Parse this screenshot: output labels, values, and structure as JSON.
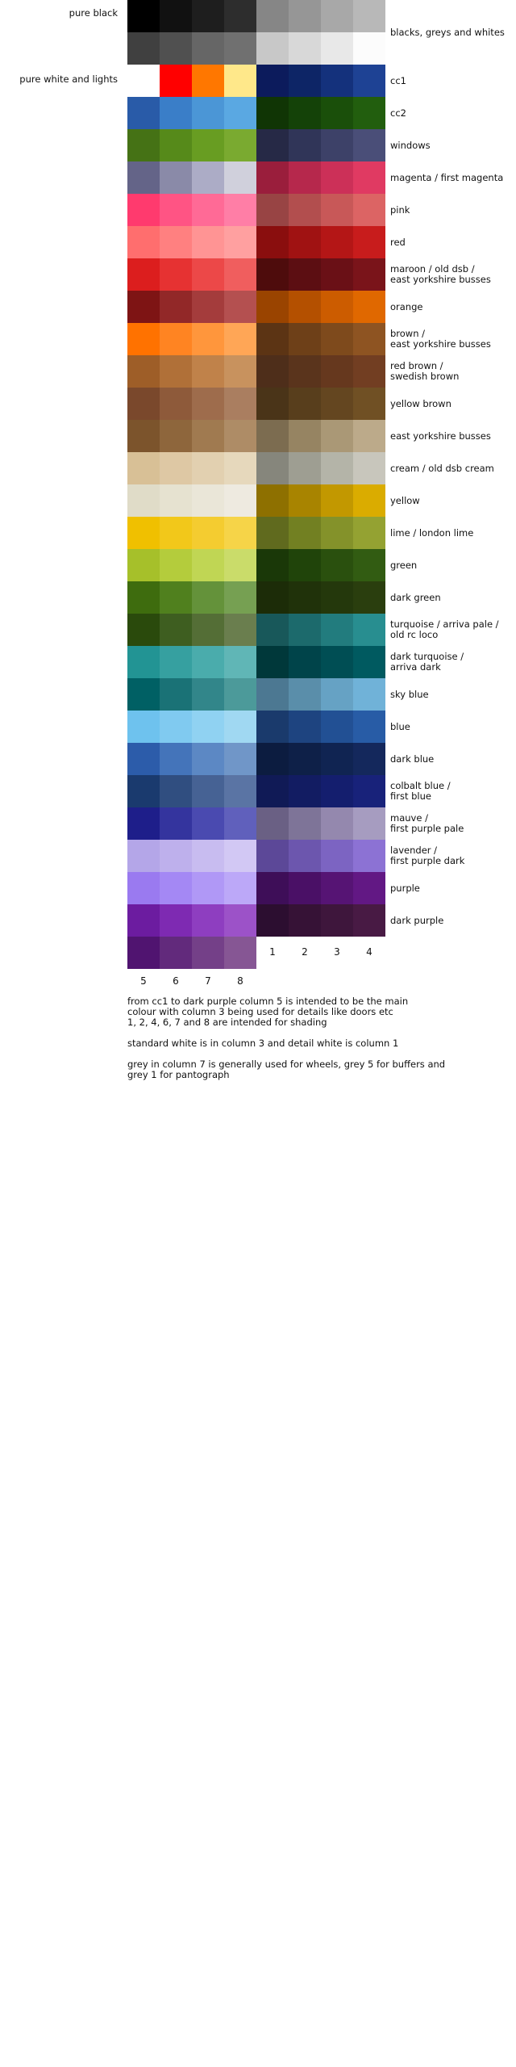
{
  "left_labels": [
    "pure black",
    "pure white and lights"
  ],
  "groups": [
    {
      "label": "blacks, greys and whites",
      "left": [
        "#000000",
        "#111111",
        "#1e1e1e",
        "#2d2d2d",
        "#404040",
        "#505050",
        "#666666",
        "#707070"
      ],
      "right": [
        "#868686",
        "#969696",
        "#a8a8a8",
        "#b8b8b8",
        "#c8c8c8",
        "#d8d8d8",
        "#e8e8e8",
        "#fcfcfc"
      ]
    },
    {
      "label": "cc1",
      "left": [
        "#ffffff",
        "#ff0000",
        "#ff7700",
        "#ffe88a"
      ],
      "right": [
        "#0c1b5c",
        "#0d2566",
        "#14317c",
        "#1e4294"
      ]
    },
    {
      "label": "cc2",
      "left": [
        "#295ba8",
        "#3a7ec8",
        "#4b96d6",
        "#5aa8e2"
      ],
      "right": [
        "#103505",
        "#144208",
        "#1a4f0a",
        "#225e0e"
      ]
    },
    {
      "label": "windows",
      "left": [
        "#457215",
        "#568a1a",
        "#689d22",
        "#7aaa30"
      ],
      "right": [
        "#262946",
        "#303558",
        "#3d4168",
        "#4a4e78"
      ]
    },
    {
      "label": "magenta / first magenta",
      "left": [
        "#646488",
        "#8a8aa8",
        "#acacc6",
        "#d0d0dc"
      ],
      "right": [
        "#9a1e3c",
        "#b6284c",
        "#cc3058",
        "#e03a62"
      ]
    },
    {
      "label": "pink",
      "left": [
        "#ff3a6e",
        "#ff5484",
        "#ff6a96",
        "#ff7ea6"
      ],
      "right": [
        "#984444",
        "#b24e4e",
        "#c85858",
        "#dc6464"
      ]
    },
    {
      "label": "red",
      "left": [
        "#ff6e6e",
        "#ff8080",
        "#ff9494",
        "#ffa0a0"
      ],
      "right": [
        "#8a0e0e",
        "#a01212",
        "#b41616",
        "#c81c1c"
      ]
    },
    {
      "label": "maroon / old dsb /\neast yorkshire busses",
      "left": [
        "#dc1e1e",
        "#e63232",
        "#ec4848",
        "#f05e5e"
      ],
      "right": [
        "#4e0c0c",
        "#5c0e12",
        "#6a1016",
        "#7a141a"
      ]
    },
    {
      "label": "orange",
      "left": [
        "#7e1414",
        "#922828",
        "#a43c3c",
        "#b45050"
      ],
      "right": [
        "#9a4400",
        "#b45000",
        "#cc5c00",
        "#e06800"
      ]
    },
    {
      "label": "brown /\neast yorkshire busses",
      "left": [
        "#ff7200",
        "#ff8422",
        "#ff963c",
        "#ffa656"
      ],
      "right": [
        "#5c3414",
        "#6e4018",
        "#7e4a1c",
        "#8e5422"
      ]
    },
    {
      "label": "red brown /\nswedish brown",
      "left": [
        "#9e5e28",
        "#b07038",
        "#c0824a",
        "#c8925e"
      ],
      "right": [
        "#4e2e1a",
        "#5a341c",
        "#66381e",
        "#723e22"
      ]
    },
    {
      "label": "yellow brown",
      "left": [
        "#7a482c",
        "#8e5a3a",
        "#9e6c4c",
        "#aa7e60"
      ],
      "right": [
        "#4a3418",
        "#583e1c",
        "#644620",
        "#705024"
      ]
    },
    {
      "label": "east yorkshire busses",
      "left": [
        "#7c542c",
        "#8e663c",
        "#a07a50",
        "#ae8c66"
      ],
      "right": [
        "#7c6c50",
        "#968462",
        "#aa9876",
        "#bcaa8a"
      ]
    },
    {
      "label": "cream / old dsb cream",
      "left": [
        "#d8c096",
        "#dec8a4",
        "#e2d0b0",
        "#e6d8bc"
      ],
      "right": [
        "#86867c",
        "#9e9e92",
        "#b4b4a8",
        "#c8c6bc"
      ]
    },
    {
      "label": "yellow",
      "left": [
        "#e0dcc8",
        "#e6e2d0",
        "#eae6d8",
        "#eeeae0"
      ],
      "right": [
        "#8e7000",
        "#a88400",
        "#c29800",
        "#daac00"
      ]
    },
    {
      "label": "lime / london lime",
      "left": [
        "#f0c000",
        "#f2c81a",
        "#f4cc30",
        "#f6d448"
      ],
      "right": [
        "#606a1e",
        "#728022",
        "#84922a",
        "#94a232"
      ]
    },
    {
      "label": "green",
      "left": [
        "#a6c02a",
        "#b4cc3c",
        "#c0d654",
        "#cadc6a"
      ],
      "right": [
        "#1a3808",
        "#20440a",
        "#2a500e",
        "#325c12"
      ]
    },
    {
      "label": "dark green",
      "left": [
        "#3e6c0e",
        "#50801e",
        "#64923a",
        "#76a052"
      ],
      "right": [
        "#1c2c08",
        "#20320a",
        "#24380c",
        "#2a3e0e"
      ]
    },
    {
      "label": "turquoise / arriva pale /\nold rc loco",
      "left": [
        "#2a4a0c",
        "#3e5e20",
        "#546e36",
        "#6a7e4e"
      ],
      "right": [
        "#18585a",
        "#1c6a6c",
        "#227c7e",
        "#288e90"
      ]
    },
    {
      "label": "dark turquoise /\narriva dark",
      "left": [
        "#229494",
        "#36a0a0",
        "#4aacac",
        "#60b6b6"
      ],
      "right": [
        "#00383a",
        "#00444a",
        "#004e54",
        "#005a60"
      ]
    },
    {
      "label": "sky blue",
      "left": [
        "#006064",
        "#1a7276",
        "#32868a",
        "#4c9a9a"
      ],
      "right": [
        "#4c7892",
        "#5a8eaa",
        "#66a2c4",
        "#70b2d8"
      ]
    },
    {
      "label": "blue",
      "left": [
        "#6ec2ee",
        "#80caf0",
        "#90d2f2",
        "#a0d8f2"
      ],
      "right": [
        "#1a3a6c",
        "#1e4480",
        "#225094",
        "#285ca6"
      ]
    },
    {
      "label": "dark blue",
      "left": [
        "#2c5caa",
        "#4474ba",
        "#5c88c4",
        "#7096c8"
      ],
      "right": [
        "#0c1c40",
        "#0e2048",
        "#102452",
        "#14285c"
      ]
    },
    {
      "label": "colbalt blue /\nfirst blue",
      "left": [
        "#1a3a6e",
        "#304e80",
        "#466294",
        "#5a74a4"
      ],
      "right": [
        "#101a56",
        "#121c62",
        "#141e6e",
        "#18227a"
      ]
    },
    {
      "label": "mauve /\nfirst purple pale",
      "left": [
        "#1e1e8a",
        "#34349e",
        "#4a4ab0",
        "#6060bc"
      ],
      "right": [
        "#6a6084",
        "#7e7498",
        "#9488ae",
        "#a69cc0"
      ]
    },
    {
      "label": "lavender /\nfirst purple dark",
      "left": [
        "#b4a6e8",
        "#beb0ec",
        "#c8bcf0",
        "#d2c8f4"
      ],
      "right": [
        "#5c4898",
        "#6c56ae",
        "#7c64c2",
        "#8c72d4"
      ]
    },
    {
      "label": "purple",
      "left": [
        "#9a7af0",
        "#a488f4",
        "#b098f6",
        "#bca8f8"
      ],
      "right": [
        "#3e0e58",
        "#4a1066",
        "#561474",
        "#621884"
      ]
    },
    {
      "label": "dark purple",
      "left": [
        "#6c1ca0",
        "#7e2ab2",
        "#8e3ec0",
        "#9c52c8"
      ],
      "right": [
        "#2c0e30",
        "#361236",
        "#3e163c",
        "#481a44"
      ]
    },
    {
      "label": "",
      "left": [
        "#501470",
        "#622a7c",
        "#744088",
        "#865694"
      ],
      "right": []
    }
  ],
  "right_column_numbers": [
    "1",
    "2",
    "3",
    "4"
  ],
  "left_column_numbers": [
    "5",
    "6",
    "7",
    "8"
  ],
  "notes": [
    "from cc1 to dark purple column 5 is intended to be the main\ncolour with column 3 being used for details like doors etc\n1, 2, 4, 6, 7 and 8 are intended for shading",
    "standard white is in column 3 and detail white is column 1",
    "grey in column 7 is generally used for wheels, grey 5 for buffers and\ngrey 1 for pantograph"
  ]
}
